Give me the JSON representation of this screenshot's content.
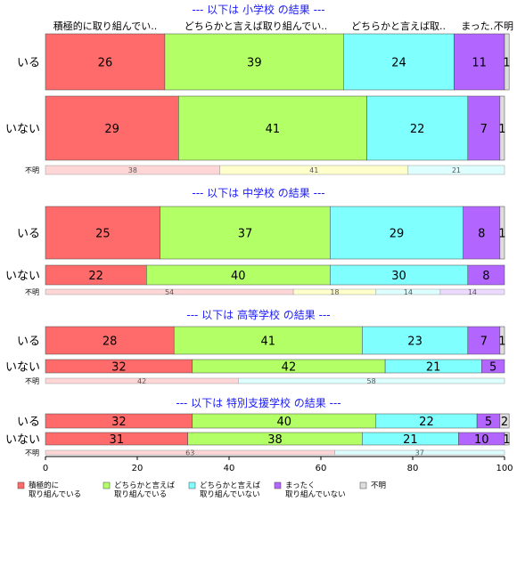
{
  "chart_data": {
    "type": "bar",
    "orientation": "horizontal",
    "stacked": true,
    "xlim": [
      0,
      100
    ],
    "xticks": [
      0,
      20,
      40,
      60,
      80,
      100
    ],
    "column_headers": [
      "積極的に取り組んでい..",
      "どちらかと言えば取り組んでい..",
      "どちらかと言えば取..",
      "まった..",
      "不明"
    ],
    "categories": [
      {
        "name": "積極的に取り組んでいる",
        "legend": [
          "積極的に",
          "取り組んでいる"
        ],
        "color": "#ff6b6b"
      },
      {
        "name": "どちらかと言えば取り組んでいる",
        "legend": [
          "どちらかと言えば",
          "取り組んでいる"
        ],
        "color": "#b3ff66"
      },
      {
        "name": "どちらかと言えば取り組んでいない",
        "legend": [
          "どちらかと言えば",
          "取り組んでいない"
        ],
        "color": "#80ffff"
      },
      {
        "name": "まったく取り組んでいない",
        "legend": [
          "まったく",
          "取り組んでいない"
        ],
        "color": "#b266ff"
      },
      {
        "name": "不明",
        "legend": [
          "不明"
        ],
        "color": "#dddddd"
      }
    ],
    "panels": [
      {
        "title": "--- 以下は 小学校 の結果 ---",
        "rows": [
          {
            "label": "いる",
            "values": [
              26,
              39,
              24,
              11,
              1
            ]
          },
          {
            "label": "いない",
            "values": [
              29,
              41,
              22,
              7,
              1
            ]
          },
          {
            "label": "不明",
            "values": [
              38,
              41,
              21,
              0,
              0
            ]
          }
        ]
      },
      {
        "title": "--- 以下は 中学校 の結果 ---",
        "rows": [
          {
            "label": "いる",
            "values": [
              25,
              37,
              29,
              8,
              1
            ]
          },
          {
            "label": "いない",
            "values": [
              22,
              40,
              30,
              8,
              0
            ]
          },
          {
            "label": "不明",
            "values": [
              54,
              18,
              14,
              14,
              0
            ]
          }
        ]
      },
      {
        "title": "--- 以下は 高等学校 の結果 ---",
        "rows": [
          {
            "label": "いる",
            "values": [
              28,
              41,
              23,
              7,
              1
            ]
          },
          {
            "label": "いない",
            "values": [
              32,
              42,
              21,
              5,
              0
            ]
          },
          {
            "label": "不明",
            "values": [
              42,
              0,
              58,
              0,
              0
            ]
          }
        ]
      },
      {
        "title": "--- 以下は 特別支援学校 の結果 ---",
        "rows": [
          {
            "label": "いる",
            "values": [
              32,
              40,
              22,
              5,
              2
            ]
          },
          {
            "label": "いない",
            "values": [
              31,
              38,
              21,
              10,
              1
            ]
          },
          {
            "label": "不明",
            "values": [
              63,
              0,
              37,
              0,
              0
            ]
          }
        ]
      }
    ]
  }
}
